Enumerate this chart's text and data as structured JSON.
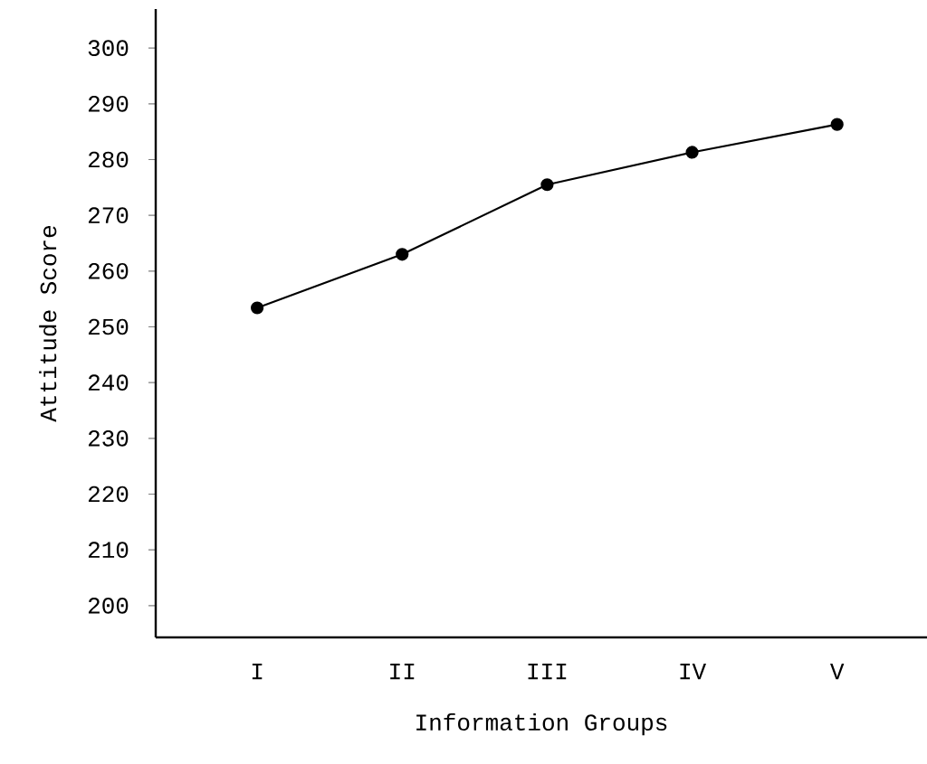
{
  "chart_data": {
    "type": "line",
    "xlabel": "Information Groups",
    "ylabel": "Attitude Score",
    "categories": [
      "I",
      "II",
      "III",
      "IV",
      "V"
    ],
    "series": [
      {
        "color": "#000000",
        "values": [
          253.4,
          263,
          275.5,
          281.3,
          286.3
        ]
      }
    ],
    "ylim": [
      194.3,
      307
    ],
    "yticks": [
      200,
      210,
      220,
      230,
      240,
      250,
      260,
      270,
      280,
      290,
      300
    ],
    "marker": "circle",
    "line_style": "solid",
    "grid": false
  }
}
